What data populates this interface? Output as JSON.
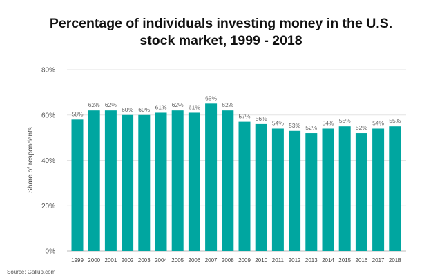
{
  "chart_data": {
    "type": "bar",
    "title_line1": "Percentage of individuals investing money in the U.S.",
    "title_line2": "stock market, 1999 - 2018",
    "xlabel": "",
    "ylabel": "Share of respondents",
    "ylim": [
      0,
      80
    ],
    "yticks": [
      "0%",
      "20%",
      "40%",
      "60%",
      "80%"
    ],
    "ytick_values": [
      0,
      20,
      40,
      60,
      80
    ],
    "grid": true,
    "categories": [
      "1999",
      "2000",
      "2001",
      "2002",
      "2003",
      "2004",
      "2005",
      "2006",
      "2007",
      "2008",
      "2009",
      "2010",
      "2011",
      "2012",
      "2013",
      "2014",
      "2015",
      "2016",
      "2017",
      "2018"
    ],
    "values": [
      58,
      62,
      62,
      60,
      60,
      61,
      62,
      61,
      65,
      62,
      57,
      56,
      54,
      53,
      52,
      54,
      55,
      52,
      54,
      55
    ],
    "bar_color": "#00a6a0",
    "data_label_suffix": "%"
  },
  "source": "Source: Gallup.com"
}
